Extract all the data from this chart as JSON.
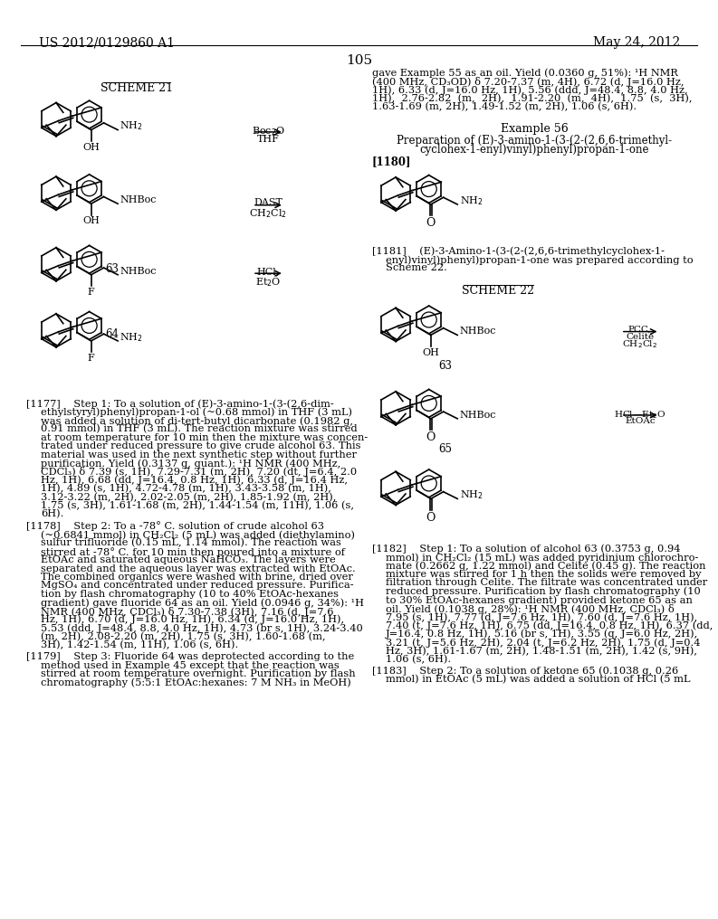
{
  "page_header_left": "US 2012/0129860 A1",
  "page_header_right": "May 24, 2012",
  "page_number": "105",
  "background_color": "#ffffff",
  "text_color": "#000000",
  "scheme21_label": "SCHEME 21",
  "scheme22_label": "SCHEME 22",
  "right_col_text": [
    "gave Example 55 as an oil. Yield (0.0360 g, 51%): ¹H NMR",
    "(400 MHz, CD₃OD) δ 7.20-7.37 (m, 4H), 6.72 (d, J=16.0 Hz,",
    "1H), 6.33 (d, J=16.0 Hz, 1H), 5.56 (ddd, J=48.4, 8.8, 4.0 Hz,",
    "1H),  2.76-2.82  (m,  2H),  1.91-2.20  (m,  4H),  1.75  (s,  3H),",
    "1.63-1.69 (m, 2H), 1.49-1.52 (m, 2H), 1.06 (s, 6H)."
  ],
  "example56_title": "Example 56",
  "example56_prep_line1": "Preparation of (E)-3-amino-1-(3-(2-(2,6,6-trimethyl-",
  "example56_prep_line2": "cyclohex-1-enyl)vinyl)phenyl)propan-1-one",
  "ref1180": "[1180]",
  "ref1181_lines": [
    "[1181]    (E)-3-Amino-1-(3-(2-(2,6,6-trimethylcyclohex-1-",
    "enyl)vinyl)phenyl)propan-1-one was prepared according to",
    "Scheme 22."
  ],
  "ref1177_lines": [
    "[1177]    Step 1: To a solution of (E)-3-amino-1-(3-(2,6-dim-",
    "ethylstyryl)phenyl)propan-1-ol (~0.68 mmol) in THF (3 mL)",
    "was added a solution of di-tert-butyl dicarbonate (0.1982 g,",
    "0.91 mmol) in THF (3 mL). The reaction mixture was stirred",
    "at room temperature for 10 min then the mixture was concen-",
    "trated under reduced pressure to give crude alcohol 63. This",
    "material was used in the next synthetic step without further",
    "purification. Yield (0.3137 g, quant.): ¹H NMR (400 MHz,",
    "CDCl₃) δ 7.39 (s, 1H), 7.29-7.31 (m, 2H), 7.20 (dt, J=6.4, 2.0",
    "Hz, 1H), 6.68 (dd, J=16.4, 0.8 Hz, 1H), 6.33 (d, J=16.4 Hz,",
    "1H), 4.89 (s, 1H), 4.72-4.78 (m, 1H), 3.43-3.58 (m, 1H),",
    "3.12-3.22 (m, 2H), 2.02-2.05 (m, 2H), 1.85-1.92 (m, 2H),",
    "1.75 (s, 3H), 1.61-1.68 (m, 2H), 1.44-1.54 (m, 11H), 1.06 (s,",
    "6H)."
  ],
  "ref1178_lines": [
    "[1178]    Step 2: To a -78° C. solution of crude alcohol 63",
    "(~0.6841 mmol) in CH₂Cl₂ (5 mL) was added (diethylamino)",
    "sulfur trifluoride (0.15 mL, 1.14 mmol). The reaction was",
    "stirred at -78° C. for 10 min then poured into a mixture of",
    "EtOAc and saturated aqueous NaHCO₃. The layers were",
    "separated and the aqueous layer was extracted with EtOAc.",
    "The combined organics were washed with brine, dried over",
    "MgSO₄ and concentrated under reduced pressure. Purifica-",
    "tion by flash chromatography (10 to 40% EtOAc-hexanes",
    "gradient) gave fluoride 64 as an oil. Yield (0.0946 g, 34%): ¹H",
    "NMR (400 MHz, CDCl₃) δ 7.30-7.38 (3H), 7.16 (d, J=7.6",
    "Hz, 1H), 6.70 (d, J=16.0 Hz, 1H), 6.34 (d, J=16.0 Hz, 1H),",
    "5.53 (ddd, J=48.4, 8.8, 4.0 Hz, 1H), 4.73 (br s, 1H), 3.24-3.40",
    "(m, 2H), 2.08-2.20 (m, 2H), 1.75 (s, 3H), 1.60-1.68 (m,",
    "3H), 1.42-1.54 (m, 11H), 1.06 (s, 6H)."
  ],
  "ref1179_lines": [
    "[1179]    Step 3: Fluoride 64 was deprotected according to the",
    "method used in Example 45 except that the reaction was",
    "stirred at room temperature overnight. Purification by flash",
    "chromatography (5:5:1 EtOAc:hexanes: 7 M NH₃ in MeOH)"
  ],
  "ref1182_lines": [
    "[1182]    Step 1: To a solution of alcohol 63 (0.3753 g, 0.94",
    "mmol) in CH₂Cl₂ (15 mL) was added pyridinium chlorochro-",
    "mate (0.2662 g, 1.22 mmol) and Celite (0.45 g). The reaction",
    "mixture was stirred for 1 h then the solids were removed by",
    "filtration through Celite. The filtrate was concentrated under",
    "reduced pressure. Purification by flash chromatography (10",
    "to 30% EtOAc-hexanes gradient) provided ketone 65 as an",
    "oil. Yield (0.1038 g, 28%): ¹H NMR (400 MHz, CDCl₃) δ",
    "7.95 (s, 1H), 7.77 (d, J=7.6 Hz, 1H), 7.60 (d, J=7.6 Hz, 1H),",
    "7.40 (t, J=7.6 Hz, 1H), 6.75 (dd, J=16.4, 0.8 Hz, 1H), 6.37 (dd,",
    "J=16.4, 0.8 Hz, 1H), 5.16 (br s, 1H), 3.55 (q, J=6.0 Hz, 2H),",
    "3.21 (t, J=5.6 Hz, 2H), 2.04 (t, J=6.2 Hz, 2H), 1.75 (d, J=0.4",
    "Hz, 3H), 1.61-1.67 (m, 2H), 1.48-1.51 (m, 2H), 1.42 (s, 9H),",
    "1.06 (s, 6H)."
  ],
  "ref1183_lines": [
    "[1183]    Step 2: To a solution of ketone 65 (0.1038 g, 0.26",
    "mmol) in EtOAc (5 mL) was added a solution of HCl (5 mL"
  ]
}
